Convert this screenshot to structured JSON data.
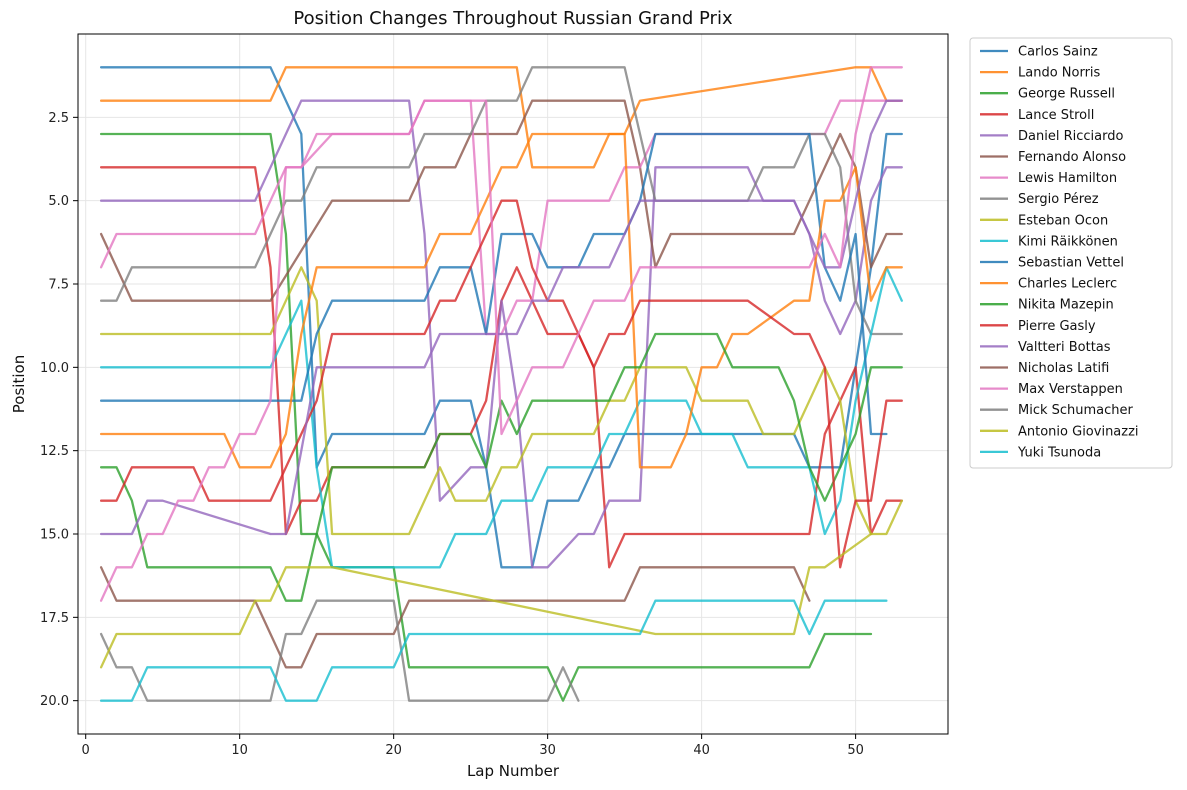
{
  "chart_data": {
    "type": "line",
    "title": "Position Changes Throughout Russian Grand Prix",
    "xlabel": "Lap Number",
    "ylabel": "Position",
    "xlim": [
      -0.5,
      56
    ],
    "ylim": [
      21,
      0
    ],
    "y_inverted": true,
    "x_ticks": [
      0,
      10,
      20,
      30,
      40,
      50
    ],
    "y_ticks": [
      2.5,
      5.0,
      7.5,
      10.0,
      12.5,
      15.0,
      17.5,
      20.0
    ],
    "y_tick_labels": [
      "2.5",
      "5.0",
      "7.5",
      "10.0",
      "12.5",
      "15.0",
      "17.5",
      "20.0"
    ],
    "grid": true,
    "legend_position": "outside-right-top",
    "series": [
      {
        "name": "Carlos Sainz",
        "color": "#1f77b4",
        "x": [
          1,
          12,
          13,
          14,
          15,
          16,
          22,
          23,
          25,
          26,
          27,
          29,
          30,
          32,
          33,
          34,
          35,
          36,
          37,
          46,
          47,
          48,
          49,
          50,
          51,
          52,
          53
        ],
        "y": [
          1,
          1,
          2,
          3,
          13,
          12,
          12,
          11,
          11,
          13,
          16,
          16,
          14,
          14,
          13,
          13,
          12,
          12,
          12,
          12,
          13,
          13,
          13,
          10,
          7,
          3,
          3
        ]
      },
      {
        "name": "Lando Norris",
        "color": "#ff7f0e",
        "x": [
          1,
          12,
          13,
          28,
          29,
          33,
          34,
          35,
          36,
          50,
          51,
          52,
          53
        ],
        "y": [
          2,
          2,
          1,
          1,
          4,
          4,
          3,
          3,
          2,
          1,
          1,
          2,
          2
        ]
      },
      {
        "name": "George Russell",
        "color": "#2ca02c",
        "x": [
          1,
          12,
          13,
          14,
          15,
          16,
          20,
          21,
          30,
          31,
          32,
          47,
          48,
          51
        ],
        "y": [
          3,
          3,
          6,
          15,
          15,
          16,
          16,
          19,
          19,
          20,
          19,
          19,
          18,
          18
        ]
      },
      {
        "name": "Lance Stroll",
        "color": "#d62728",
        "x": [
          1,
          11,
          12,
          13,
          14,
          15,
          16,
          22,
          23,
          25,
          26,
          27,
          28,
          29,
          30,
          32,
          33,
          34,
          35,
          47,
          48,
          49,
          50,
          51,
          52,
          53
        ],
        "y": [
          4,
          4,
          7,
          15,
          14,
          14,
          13,
          13,
          12,
          12,
          11,
          8,
          7,
          8,
          9,
          9,
          10,
          16,
          15,
          15,
          12,
          11,
          10,
          15,
          14,
          14
        ]
      },
      {
        "name": "Daniel Ricciardo",
        "color": "#9467bd",
        "x": [
          1,
          11,
          12,
          14,
          21,
          22,
          23,
          25,
          26,
          27,
          28,
          29,
          30,
          32,
          33,
          34,
          35,
          36,
          37,
          43,
          44,
          46,
          47,
          48,
          49,
          50,
          51,
          52,
          53
        ],
        "y": [
          5,
          5,
          4,
          2,
          2,
          6,
          14,
          13,
          13,
          8,
          11,
          16,
          16,
          15,
          15,
          14,
          14,
          14,
          4,
          4,
          5,
          5,
          6,
          8,
          9,
          8,
          5,
          4,
          4
        ]
      },
      {
        "name": "Fernando Alonso",
        "color": "#8c564b",
        "x": [
          1,
          3,
          12,
          16,
          21,
          22,
          24,
          25,
          26,
          28,
          29,
          35,
          36,
          37,
          38,
          46,
          47,
          48,
          49,
          50,
          51,
          52,
          53
        ],
        "y": [
          6,
          8,
          8,
          5,
          5,
          4,
          4,
          3,
          3,
          3,
          2,
          2,
          4,
          7,
          6,
          6,
          5,
          4,
          3,
          4,
          7,
          6,
          6
        ]
      },
      {
        "name": "Lewis Hamilton",
        "color": "#e377c2",
        "x": [
          1,
          2,
          11,
          13,
          14,
          16,
          21,
          22,
          25,
          26,
          27,
          28,
          29,
          30,
          34,
          35,
          36,
          37,
          38,
          47,
          48,
          49,
          50,
          51,
          52,
          53
        ],
        "y": [
          7,
          6,
          6,
          4,
          4,
          3,
          3,
          2,
          2,
          9,
          9,
          8,
          8,
          5,
          5,
          4,
          4,
          3,
          3,
          3,
          3,
          2,
          2,
          2,
          2,
          2
        ]
      },
      {
        "name": "Sergio Pérez",
        "color": "#7f7f7f",
        "x": [
          1,
          2,
          3,
          11,
          13,
          14,
          15,
          21,
          22,
          25,
          26,
          28,
          29,
          35,
          36,
          37,
          43,
          44,
          46,
          47,
          48,
          49,
          50,
          51,
          52,
          53
        ],
        "y": [
          8,
          8,
          7,
          7,
          5,
          5,
          4,
          4,
          3,
          3,
          2,
          2,
          1,
          1,
          3,
          5,
          5,
          4,
          4,
          3,
          3,
          4,
          8,
          9,
          9,
          9
        ]
      },
      {
        "name": "Esteban Ocon",
        "color": "#bcbd22",
        "x": [
          1,
          12,
          13,
          14,
          15,
          16,
          21,
          22,
          23,
          24,
          26,
          27,
          28,
          29,
          31,
          33,
          34,
          35,
          36,
          38,
          39,
          40,
          43,
          44,
          46,
          47,
          48,
          49,
          50,
          51,
          52,
          53
        ],
        "y": [
          9,
          9,
          8,
          7,
          8,
          15,
          15,
          14,
          13,
          14,
          14,
          13,
          13,
          12,
          12,
          12,
          11,
          11,
          10,
          10,
          10,
          11,
          11,
          12,
          12,
          11,
          10,
          11,
          14,
          15,
          15,
          14
        ]
      },
      {
        "name": "Kimi Räikkönen",
        "color": "#17becf",
        "x": [
          1,
          12,
          14,
          15,
          16,
          23,
          24,
          26,
          27,
          28,
          29,
          30,
          33,
          34,
          35,
          36,
          39,
          40,
          42,
          43,
          47,
          48,
          49,
          50,
          51,
          52,
          53
        ],
        "y": [
          10,
          10,
          8,
          13,
          16,
          16,
          15,
          15,
          14,
          14,
          14,
          13,
          13,
          12,
          12,
          11,
          11,
          12,
          12,
          13,
          13,
          15,
          14,
          11,
          9,
          7,
          8
        ]
      },
      {
        "name": "Sebastian Vettel",
        "color": "#1f77b4",
        "x": [
          1,
          14,
          15,
          16,
          22,
          23,
          25,
          26,
          27,
          29,
          30,
          32,
          33,
          35,
          36,
          37,
          47,
          48,
          49,
          50,
          51,
          52
        ],
        "y": [
          11,
          11,
          9,
          8,
          8,
          7,
          7,
          9,
          6,
          6,
          7,
          7,
          6,
          6,
          5,
          3,
          3,
          7,
          8,
          6,
          12,
          12
        ]
      },
      {
        "name": "Charles Leclerc",
        "color": "#ff7f0e",
        "x": [
          1,
          9,
          10,
          12,
          13,
          14,
          15,
          22,
          23,
          25,
          26,
          27,
          28,
          29,
          35,
          36,
          37,
          38,
          39,
          40,
          41,
          42,
          43,
          46,
          47,
          48,
          49,
          50,
          51,
          52,
          53
        ],
        "y": [
          12,
          12,
          13,
          13,
          12,
          9,
          7,
          7,
          6,
          6,
          5,
          4,
          4,
          3,
          3,
          13,
          13,
          13,
          12,
          10,
          10,
          9,
          9,
          8,
          8,
          5,
          5,
          4,
          8,
          7,
          7
        ]
      },
      {
        "name": "Nikita Mazepin",
        "color": "#2ca02c",
        "x": [
          1,
          2,
          3,
          4,
          12,
          13,
          14,
          15,
          16,
          22,
          23,
          25,
          26,
          27,
          28,
          29,
          34,
          35,
          36,
          37,
          38,
          41,
          42,
          45,
          46,
          47,
          48,
          49,
          50,
          51,
          52,
          53
        ],
        "y": [
          13,
          13,
          14,
          16,
          16,
          17,
          17,
          15,
          13,
          13,
          12,
          12,
          13,
          11,
          12,
          11,
          11,
          10,
          10,
          9,
          9,
          9,
          10,
          10,
          11,
          13,
          14,
          13,
          12,
          10,
          10,
          10
        ]
      },
      {
        "name": "Pierre Gasly",
        "color": "#d62728",
        "x": [
          1,
          2,
          3,
          7,
          8,
          12,
          13,
          14,
          15,
          16,
          22,
          23,
          24,
          25,
          27,
          28,
          29,
          30,
          31,
          33,
          34,
          35,
          36,
          37,
          38,
          43,
          46,
          47,
          48,
          49,
          50,
          51,
          52,
          53
        ],
        "y": [
          14,
          14,
          13,
          13,
          14,
          14,
          13,
          12,
          11,
          9,
          9,
          8,
          8,
          7,
          5,
          5,
          7,
          8,
          8,
          10,
          9,
          9,
          8,
          8,
          8,
          8,
          9,
          9,
          10,
          16,
          14,
          14,
          11,
          11
        ]
      },
      {
        "name": "Valtteri Bottas",
        "color": "#9467bd",
        "x": [
          1,
          3,
          4,
          5,
          12,
          13,
          15,
          16,
          22,
          23,
          24,
          28,
          29,
          30,
          31,
          33,
          34,
          35,
          36,
          46,
          47,
          48,
          49,
          50,
          51,
          52,
          53
        ],
        "y": [
          15,
          15,
          14,
          14,
          15,
          15,
          10,
          10,
          10,
          9,
          9,
          9,
          8,
          8,
          7,
          7,
          7,
          6,
          5,
          5,
          6,
          7,
          7,
          5,
          3,
          2,
          2
        ]
      },
      {
        "name": "Nicholas Latifi",
        "color": "#8c564b",
        "x": [
          1,
          2,
          11,
          12,
          13,
          14,
          15,
          20,
          21,
          35,
          36,
          37,
          46,
          47
        ],
        "y": [
          16,
          17,
          17,
          18,
          19,
          19,
          18,
          18,
          17,
          17,
          16,
          16,
          16,
          17
        ]
      },
      {
        "name": "Max Verstappen",
        "color": "#e377c2",
        "x": [
          1,
          2,
          3,
          4,
          5,
          6,
          7,
          8,
          9,
          10,
          11,
          12,
          13,
          14,
          15,
          16,
          21,
          22,
          25,
          26,
          27,
          28,
          29,
          30,
          31,
          32,
          33,
          34,
          35,
          36,
          37,
          38,
          47,
          48,
          49,
          50,
          51,
          52,
          53
        ],
        "y": [
          17,
          16,
          16,
          15,
          15,
          14,
          14,
          13,
          13,
          12,
          12,
          11,
          4,
          4,
          3,
          3,
          3,
          2,
          2,
          2,
          12,
          11,
          10,
          10,
          10,
          9,
          8,
          8,
          8,
          7,
          7,
          7,
          7,
          6,
          7,
          3,
          1,
          1,
          1
        ]
      },
      {
        "name": "Mick Schumacher",
        "color": "#7f7f7f",
        "x": [
          1,
          2,
          3,
          4,
          12,
          13,
          14,
          15,
          20,
          21,
          30,
          31,
          32
        ],
        "y": [
          18,
          19,
          19,
          20,
          20,
          18,
          18,
          17,
          17,
          20,
          20,
          19,
          20
        ]
      },
      {
        "name": "Antonio Giovinazzi",
        "color": "#bcbd22",
        "x": [
          1,
          2,
          10,
          11,
          12,
          13,
          16,
          37,
          46,
          47,
          48,
          51
        ],
        "y": [
          19,
          18,
          18,
          17,
          17,
          16,
          16,
          18,
          18,
          16,
          16,
          15
        ]
      },
      {
        "name": "Yuki Tsunoda",
        "color": "#17becf",
        "x": [
          1,
          3,
          4,
          12,
          13,
          15,
          16,
          20,
          21,
          36,
          37,
          46,
          47,
          48,
          52
        ],
        "y": [
          20,
          20,
          19,
          19,
          20,
          20,
          19,
          19,
          18,
          18,
          17,
          17,
          18,
          17,
          17
        ]
      }
    ]
  }
}
